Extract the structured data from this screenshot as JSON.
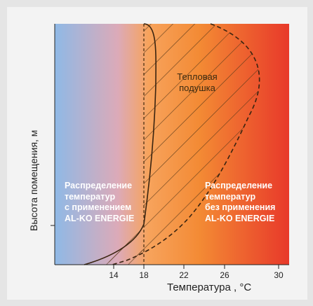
{
  "axis": {
    "ylabel": "Высота помещения, м",
    "xlabel": "Температура , °C",
    "xticks": [
      "14",
      "18",
      "22",
      "26",
      "30"
    ]
  },
  "labels": {
    "cushion_line1": "Тепловая",
    "cushion_line2": "подушка",
    "left_note": [
      "Распределение",
      "температур",
      "с применением",
      "AL-KO ENERGIE"
    ],
    "right_note": [
      "Распределение",
      "температур",
      "без применения",
      "AL-KO ENERGIE"
    ]
  },
  "colors": {
    "cold": "#8ab8e8",
    "warm": "#f5a040",
    "hot": "#e83a2a"
  }
}
